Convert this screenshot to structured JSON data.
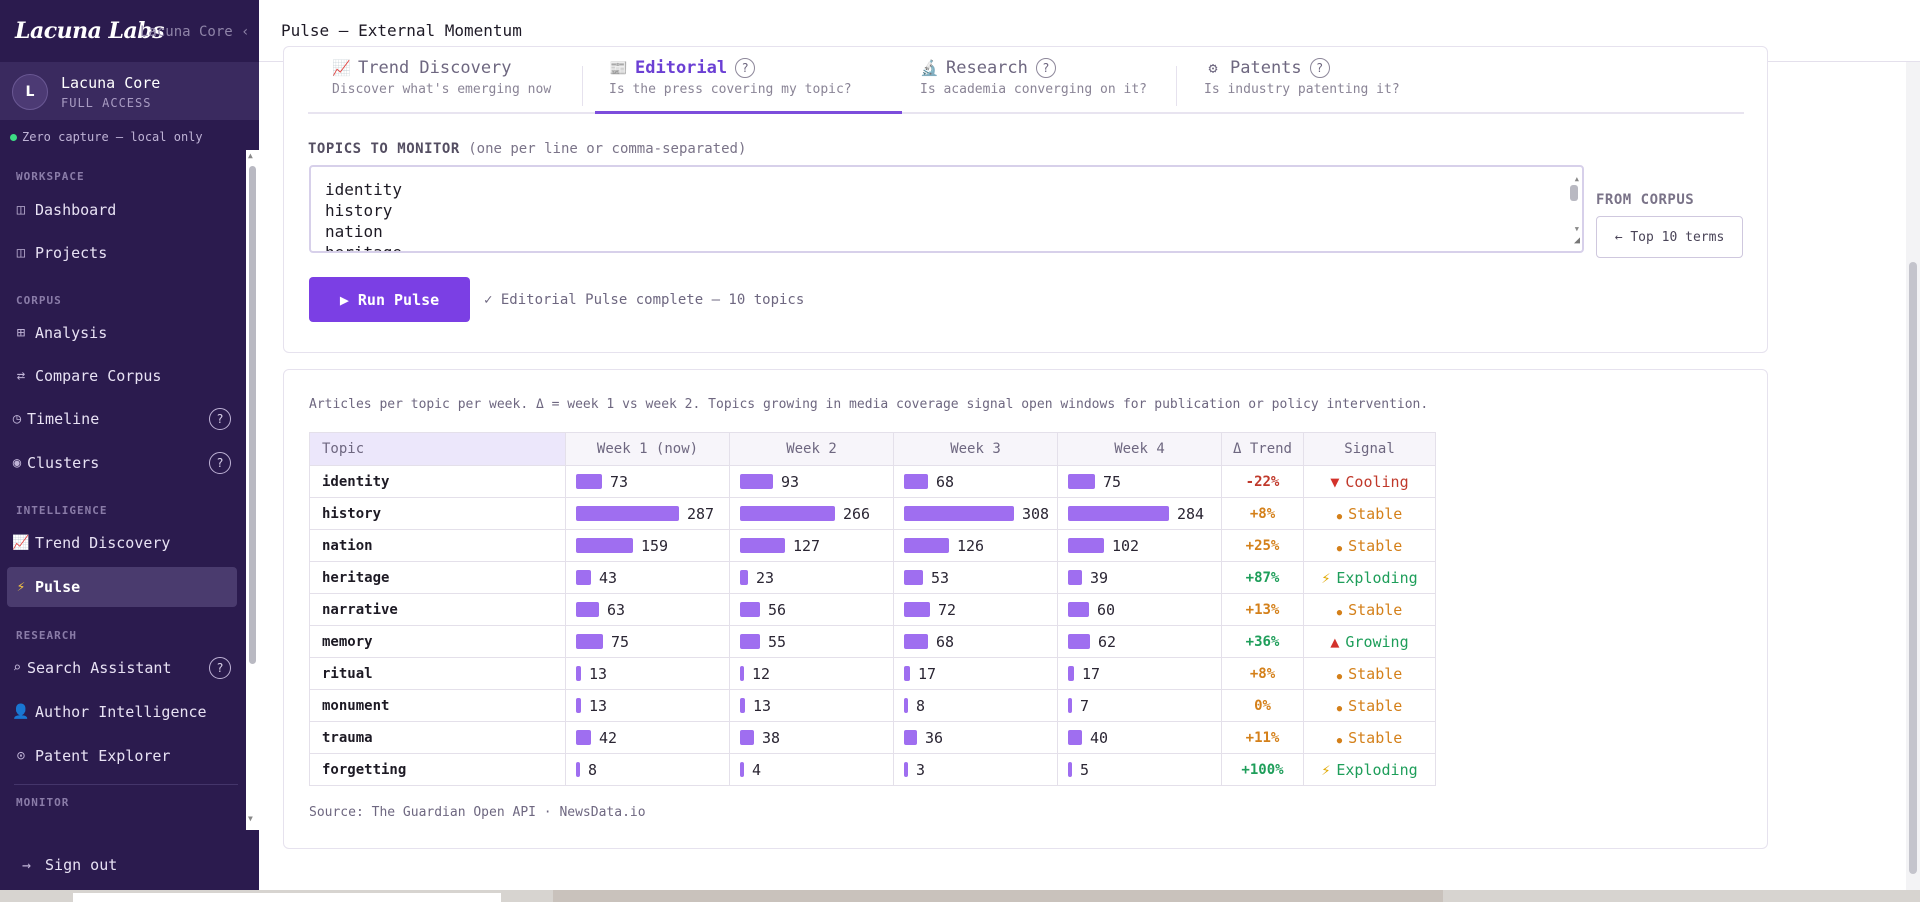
{
  "brand": {
    "name": "Lacuna Labs",
    "ghost": "Lacuna Core ‹"
  },
  "user": {
    "initial": "L",
    "name": "Lacuna Core",
    "role": "FULL ACCESS"
  },
  "capture": "Zero capture — local only",
  "sidebar": {
    "sections": {
      "workspace": "WORKSPACE",
      "corpus": "CORPUS",
      "intelligence": "INTELLIGENCE",
      "research": "RESEARCH",
      "monitor": "MONITOR"
    },
    "items": {
      "dashboard": "Dashboard",
      "projects": "Projects",
      "analysis": "Analysis",
      "compare": "Compare Corpus",
      "timeline": "Timeline",
      "clusters": "Clusters",
      "trend": "Trend Discovery",
      "pulse": "Pulse",
      "search": "Search Assistant",
      "author": "Author Intelligence",
      "patent": "Patent Explorer"
    },
    "help": "?",
    "signout": "Sign out"
  },
  "header": {
    "title": "Pulse — External Momentum"
  },
  "tabs": [
    {
      "label": "Trend Discovery",
      "sub": "Discover what's emerging now"
    },
    {
      "label": "Editorial",
      "sub": "Is the press covering my topic?",
      "help": "?"
    },
    {
      "label": "Research",
      "sub": "Is academia converging on it?",
      "help": "?"
    },
    {
      "label": "Patents",
      "sub": "Is industry patenting it?",
      "help": "?"
    }
  ],
  "topics": {
    "label": "TOPICS TO MONITOR",
    "hint": "(one per line or comma-separated)",
    "lines": [
      "identity",
      "history",
      "nation",
      "heritage"
    ]
  },
  "from_corpus": {
    "label": "FROM CORPUS",
    "button": "← Top 10 terms"
  },
  "run": {
    "button": "▶ Run Pulse",
    "status": "✓ Editorial Pulse complete — 10 topics"
  },
  "results": {
    "description": "Articles per topic per week. Δ = week 1 vs week 2. Topics growing in media coverage signal open windows for publication or policy intervention.",
    "columns": [
      "Topic",
      "Week 1 (now)",
      "Week 2",
      "Week 3",
      "Week 4",
      "Δ Trend",
      "Signal"
    ],
    "max_value": 308,
    "rows": [
      {
        "topic": "identity",
        "w": [
          73,
          93,
          68,
          75
        ],
        "delta": "-22%",
        "signal": "Cooling",
        "kind": "cool"
      },
      {
        "topic": "history",
        "w": [
          287,
          266,
          308,
          284
        ],
        "delta": "+8%",
        "signal": "Stable",
        "kind": "stable"
      },
      {
        "topic": "nation",
        "w": [
          159,
          127,
          126,
          102
        ],
        "delta": "+25%",
        "signal": "Stable",
        "kind": "stable"
      },
      {
        "topic": "heritage",
        "w": [
          43,
          23,
          53,
          39
        ],
        "delta": "+87%",
        "signal": "Exploding",
        "kind": "explode"
      },
      {
        "topic": "narrative",
        "w": [
          63,
          56,
          72,
          60
        ],
        "delta": "+13%",
        "signal": "Stable",
        "kind": "stable"
      },
      {
        "topic": "memory",
        "w": [
          75,
          55,
          68,
          62
        ],
        "delta": "+36%",
        "signal": "Growing",
        "kind": "grow"
      },
      {
        "topic": "ritual",
        "w": [
          13,
          12,
          17,
          17
        ],
        "delta": "+8%",
        "signal": "Stable",
        "kind": "stable"
      },
      {
        "topic": "monument",
        "w": [
          13,
          13,
          8,
          7
        ],
        "delta": "0%",
        "signal": "Stable",
        "kind": "stable"
      },
      {
        "topic": "trauma",
        "w": [
          42,
          38,
          36,
          40
        ],
        "delta": "+11%",
        "signal": "Stable",
        "kind": "stable"
      },
      {
        "topic": "forgetting",
        "w": [
          8,
          4,
          3,
          5
        ],
        "delta": "+100%",
        "signal": "Exploding",
        "kind": "explode"
      }
    ],
    "source": "Source: The Guardian Open API · NewsData.io"
  },
  "colors": {
    "sidebar_bg": "#2b1b4e",
    "accent": "#7b3fe4",
    "bar": "#9f6ef0",
    "cool": "#c0392b",
    "stable": "#d4801a",
    "growth": "#1e9e5a"
  },
  "icons": {
    "dashboard": "panel-icon",
    "analysis": "grid-icon",
    "compare": "swap-icon",
    "timeline": "clock-icon",
    "clusters": "target-icon",
    "trend": "chart-icon",
    "pulse": "lightning-icon",
    "search": "search-icon",
    "author": "person-icon",
    "patent": "compass-icon",
    "signout": "arrow-icon"
  }
}
